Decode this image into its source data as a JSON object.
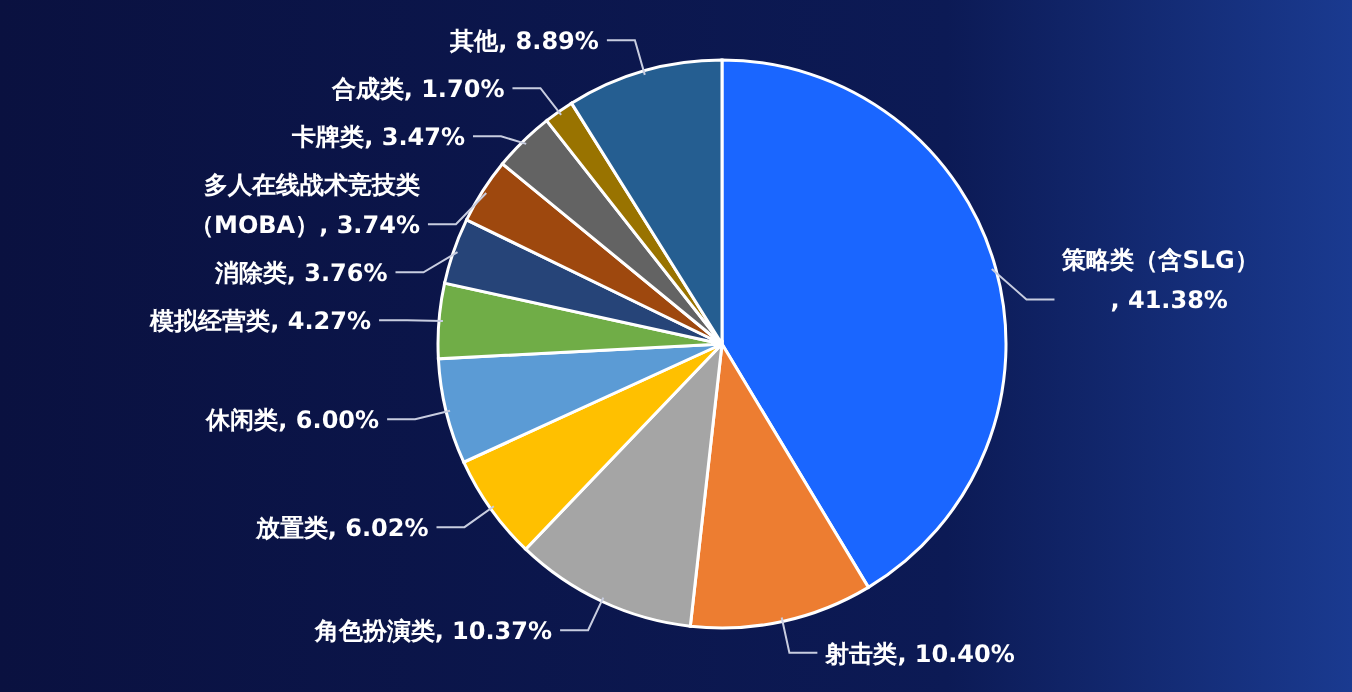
{
  "chart_data": {
    "type": "pie",
    "categories": [
      "策略类（含SLG）",
      "射击类",
      "角色扮演类",
      "放置类",
      "休闲类",
      "模拟经营类",
      "消除类",
      "多人在线战术竞技类（MOBA）",
      "卡牌类",
      "合成类",
      "其他"
    ],
    "values": [
      41.38,
      10.4,
      10.37,
      6.02,
      6.0,
      4.27,
      3.76,
      3.74,
      3.47,
      1.7,
      8.89
    ],
    "colors": [
      "#1a66ff",
      "#ed7d31",
      "#a5a5a5",
      "#ffc000",
      "#5b9bd5",
      "#70ad47",
      "#264478",
      "#9e480e",
      "#636363",
      "#997300",
      "#255e91"
    ],
    "value_labels": [
      ", 41.38%",
      ", 10.40%",
      ", 10.37%",
      ", 6.02%",
      ", 6.00%",
      ", 4.27%",
      ", 3.76%",
      ", 3.74%",
      ", 3.47%",
      ", 1.70%",
      ", 8.89%"
    ]
  }
}
